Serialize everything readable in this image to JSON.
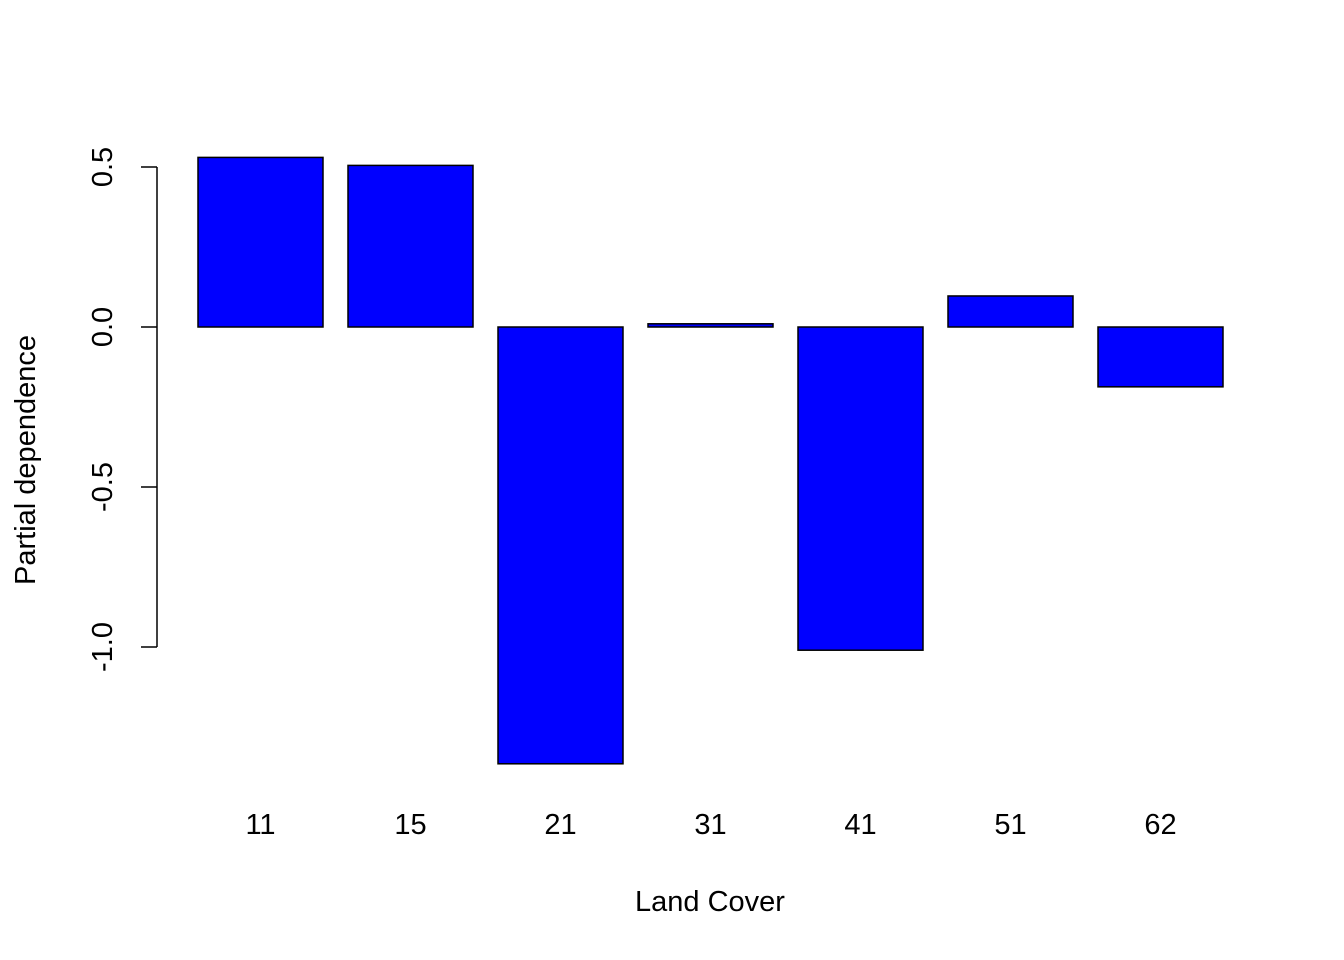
{
  "chart_data": {
    "type": "bar",
    "title": "",
    "xlabel": "Land Cover",
    "ylabel": "Partial dependence",
    "categories": [
      "11",
      "15",
      "21",
      "31",
      "41",
      "51",
      "62"
    ],
    "values": [
      0.53,
      0.505,
      -1.365,
      0.01,
      -1.01,
      0.097,
      -0.187
    ],
    "yticks": [
      -1.0,
      -0.5,
      0.0,
      0.5
    ],
    "ytick_labels": [
      "-1.0",
      "-0.5",
      "0.0",
      "0.5"
    ],
    "ylim": [
      -1.365,
      0.53
    ],
    "grid": false,
    "bar_color": "#0000ff",
    "bar_border_color": "#000000"
  }
}
